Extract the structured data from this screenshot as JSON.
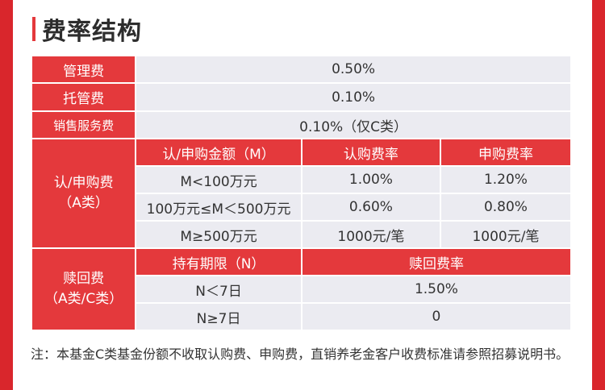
{
  "title": "费率结构",
  "rows": {
    "management_fee": {
      "label": "管理费",
      "value": "0.50%"
    },
    "custody_fee": {
      "label": "托管费",
      "value": "0.10%"
    },
    "sales_service_fee": {
      "label": "销售服务费",
      "value": "0.10%（仅C类）"
    }
  },
  "subscription": {
    "label_line1": "认/申购费",
    "label_line2": "（A类）",
    "headers": [
      "认/申购金额（M）",
      "认购费率",
      "申购费率"
    ],
    "rows": [
      [
        "M<100万元",
        "1.00%",
        "1.20%"
      ],
      [
        "100万元≤M＜500万元",
        "0.60%",
        "0.80%"
      ],
      [
        "M≥500万元",
        "1000元/笔",
        "1000元/笔"
      ]
    ]
  },
  "redemption": {
    "label_line1": "赎回费",
    "label_line2": "（A类/C类）",
    "headers": [
      "持有期限（N）",
      "赎回费率"
    ],
    "rows": [
      [
        "N＜7日",
        "1.50%"
      ],
      [
        "N≥7日",
        "0"
      ]
    ]
  },
  "note": "注：本基金C类基金份额不收取认购费、申购费，直销养老金客户收费标准请参照招募说明书。",
  "colors": {
    "accent": "#e4393c",
    "background": "#d9262c",
    "cell": "#ebebf1"
  }
}
